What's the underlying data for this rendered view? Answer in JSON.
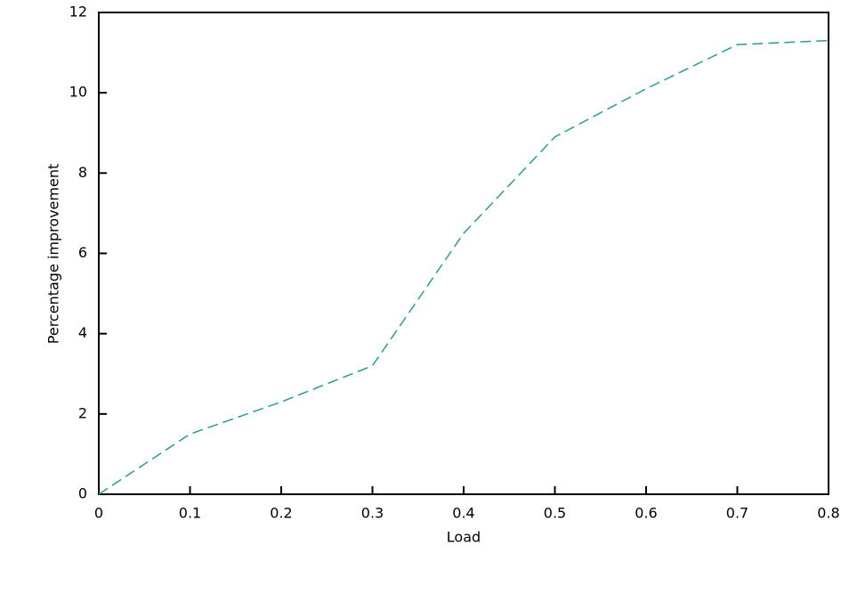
{
  "chart_data": {
    "type": "line",
    "x_label": "Load",
    "y_label": "Percentage improvement",
    "x": [
      0,
      0.1,
      0.2,
      0.3,
      0.4,
      0.5,
      0.6,
      0.7,
      0.8
    ],
    "series": [
      {
        "color": "#2a9a9c",
        "values": [
          0,
          1.5,
          2.3,
          3.2,
          6.5,
          8.9,
          10.1,
          11.2,
          11.3
        ]
      }
    ],
    "xlim": [
      0,
      0.8
    ],
    "xticks": [
      0,
      0.1,
      0.2,
      0.3,
      0.4,
      0.5,
      0.6,
      0.7,
      0.8
    ],
    "ylim": [
      0,
      12
    ],
    "yticks": [
      0,
      2,
      4,
      6,
      8,
      10,
      12
    ]
  }
}
